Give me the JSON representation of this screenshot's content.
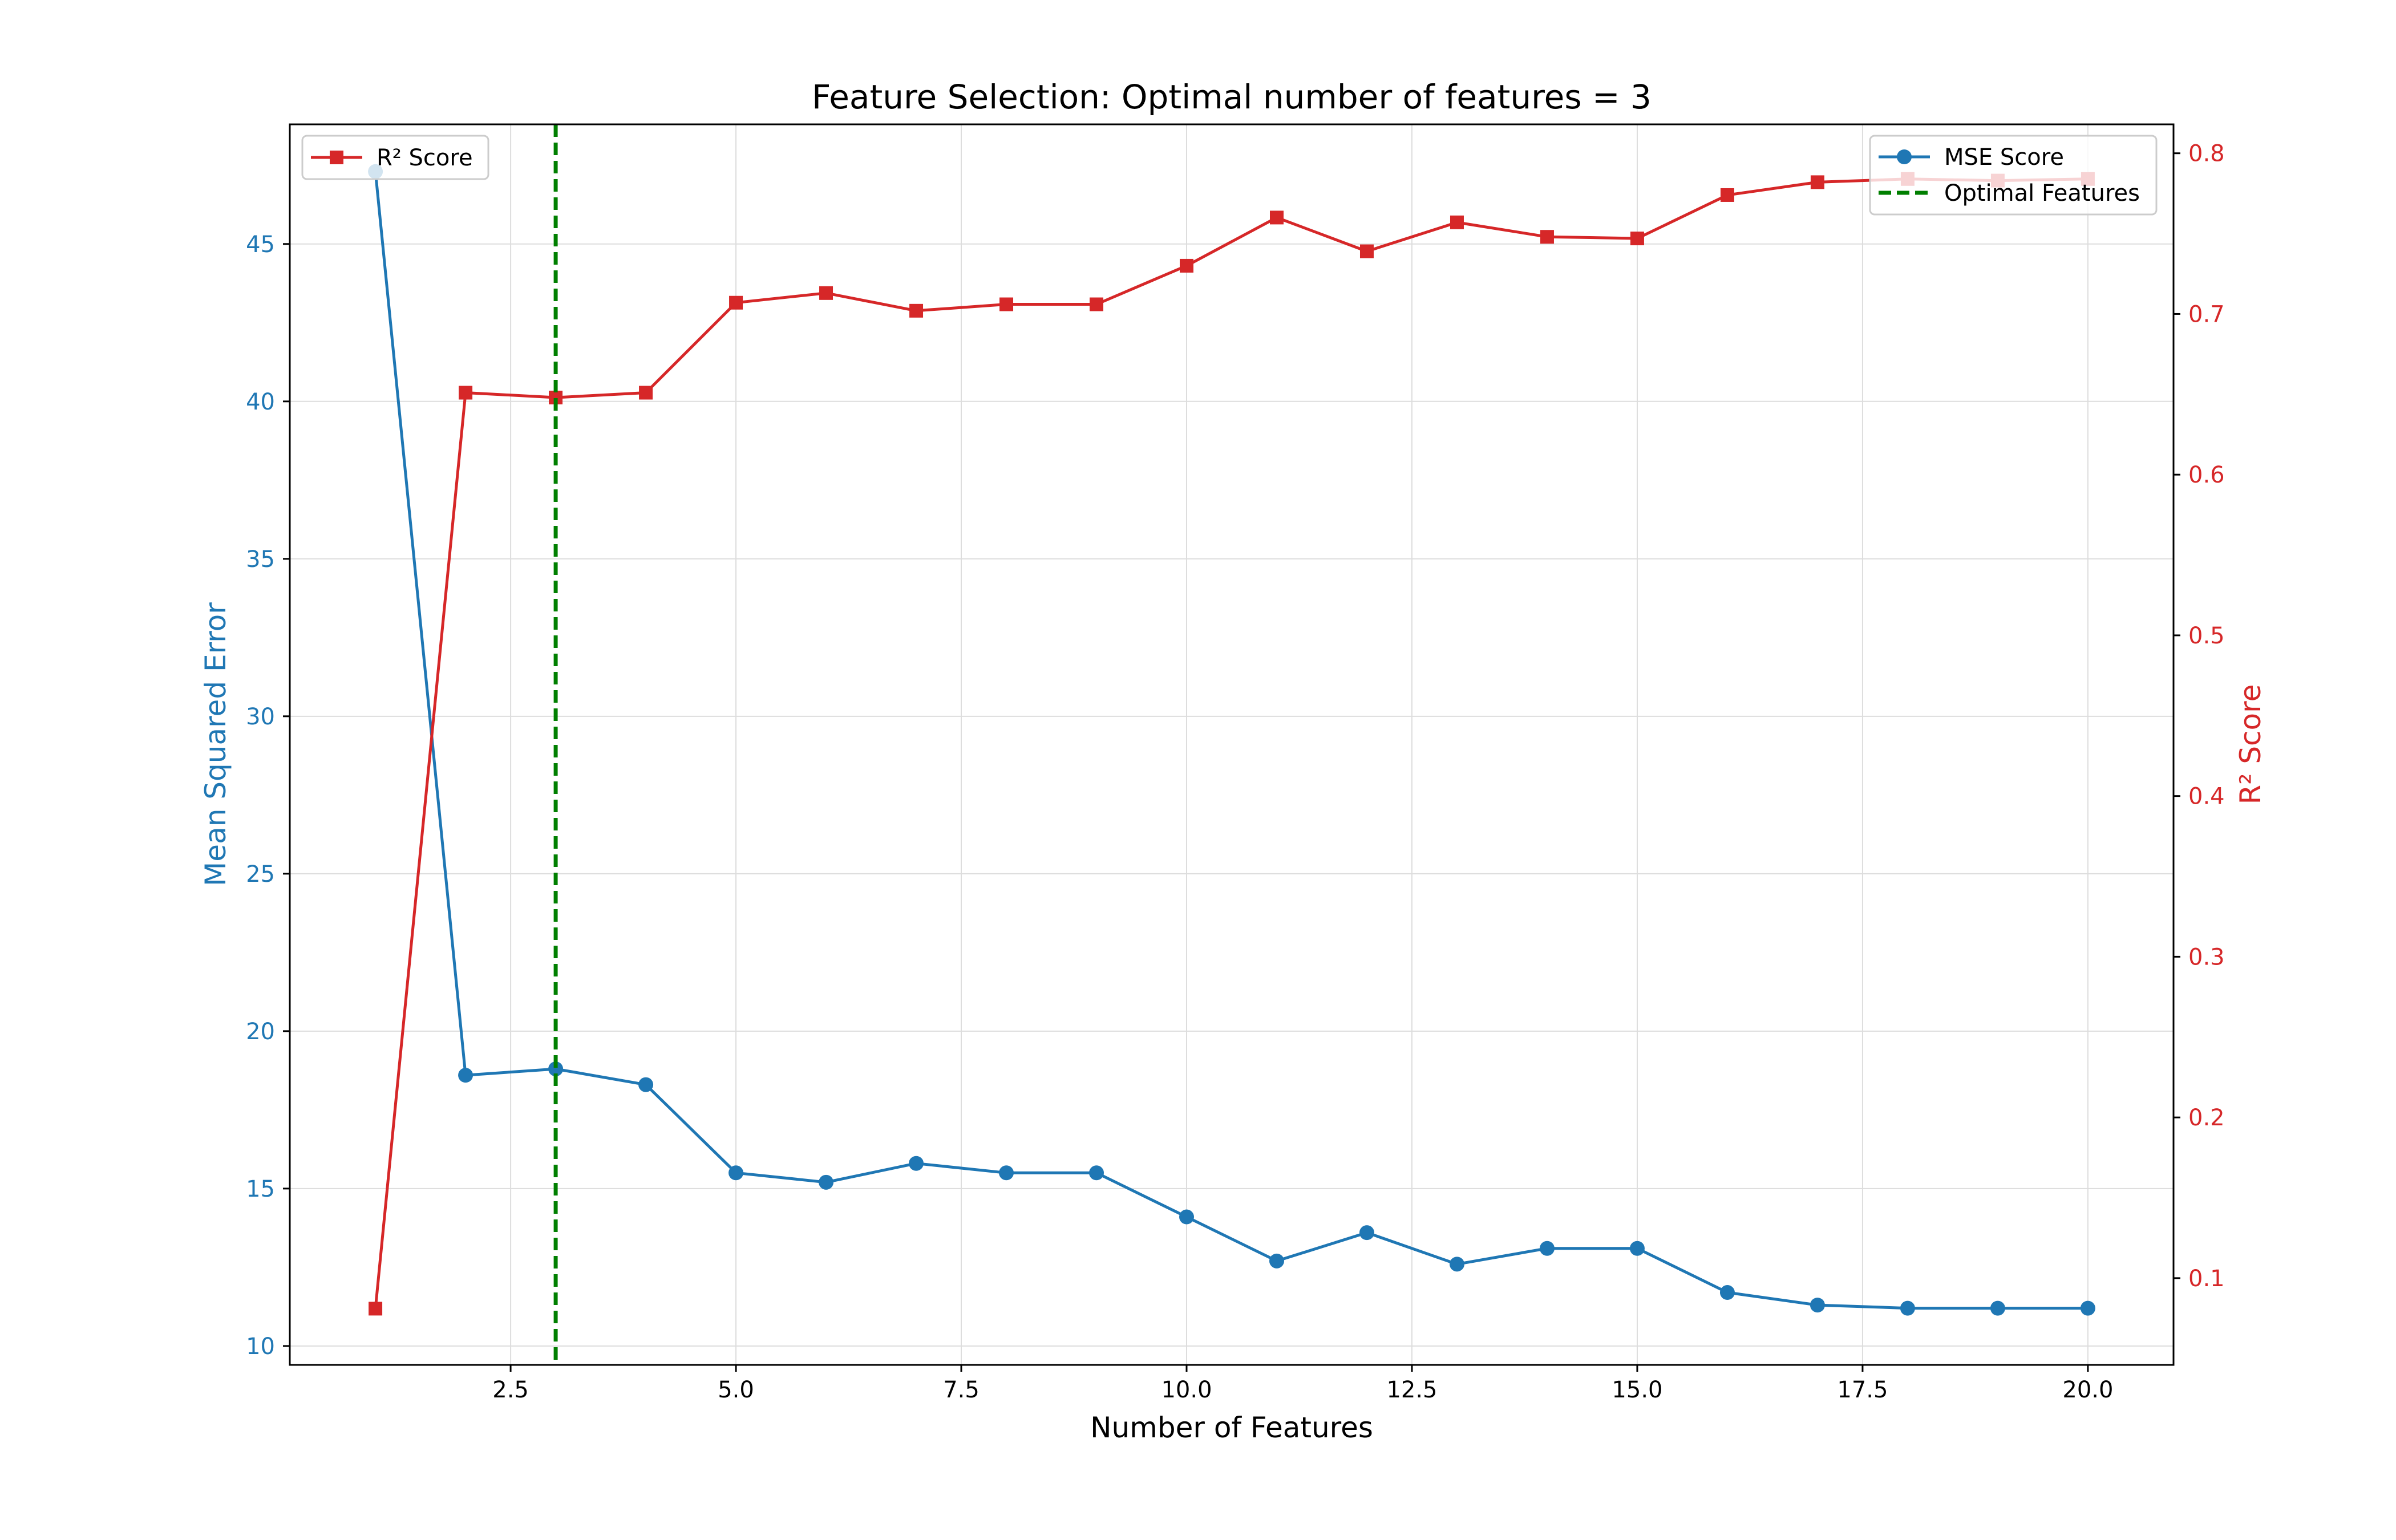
{
  "colors": {
    "mse": "#1f77b4",
    "r2": "#d62728",
    "optimal": "#007f00",
    "grid": "#dddddd",
    "axis": "#000000"
  },
  "chart_data": {
    "type": "line",
    "title": "Feature Selection: Optimal number of features = 3",
    "xlabel": "Number of Features",
    "ylabel": "Mean Squared Error",
    "y2label": "R² Score",
    "xlim": [
      0.05,
      20.95
    ],
    "ylim": [
      9.4,
      48.8
    ],
    "y2lim": [
      0.046,
      0.818
    ],
    "x_ticks": [
      2.5,
      5.0,
      7.5,
      10.0,
      12.5,
      15.0,
      17.5,
      20.0
    ],
    "x_tick_labels": [
      "2.5",
      "5.0",
      "7.5",
      "10.0",
      "12.5",
      "15.0",
      "17.5",
      "20.0"
    ],
    "y_ticks": [
      10,
      15,
      20,
      25,
      30,
      35,
      40,
      45
    ],
    "y_tick_labels": [
      "10",
      "15",
      "20",
      "25",
      "30",
      "35",
      "40",
      "45"
    ],
    "y2_ticks": [
      0.1,
      0.2,
      0.3,
      0.4,
      0.5,
      0.6,
      0.7,
      0.8
    ],
    "y2_tick_labels": [
      "0.1",
      "0.2",
      "0.3",
      "0.4",
      "0.5",
      "0.6",
      "0.7",
      "0.8"
    ],
    "grid": true,
    "x": [
      1,
      2,
      3,
      4,
      5,
      6,
      7,
      8,
      9,
      10,
      11,
      12,
      13,
      14,
      15,
      16,
      17,
      18,
      19,
      20
    ],
    "series": [
      {
        "name": "MSE Score",
        "axis": "left",
        "marker": "circle",
        "values": [
          47.3,
          18.6,
          18.8,
          18.3,
          15.5,
          15.2,
          15.8,
          15.5,
          15.5,
          14.1,
          12.7,
          13.6,
          12.6,
          13.1,
          13.1,
          11.7,
          11.3,
          11.2,
          11.2,
          11.2
        ]
      },
      {
        "name": "R² Score",
        "axis": "right",
        "marker": "square",
        "values": [
          0.081,
          0.651,
          0.648,
          0.651,
          0.707,
          0.713,
          0.702,
          0.706,
          0.706,
          0.73,
          0.76,
          0.739,
          0.757,
          0.748,
          0.747,
          0.774,
          0.782,
          0.784,
          0.783,
          0.784
        ]
      }
    ],
    "vline": {
      "name": "Optimal Features",
      "x": 3,
      "style": "dashed"
    },
    "legends": [
      {
        "placement": "upper-left",
        "entries": [
          "R² Score"
        ]
      },
      {
        "placement": "upper-right",
        "entries": [
          "MSE Score",
          "Optimal Features"
        ]
      }
    ]
  }
}
